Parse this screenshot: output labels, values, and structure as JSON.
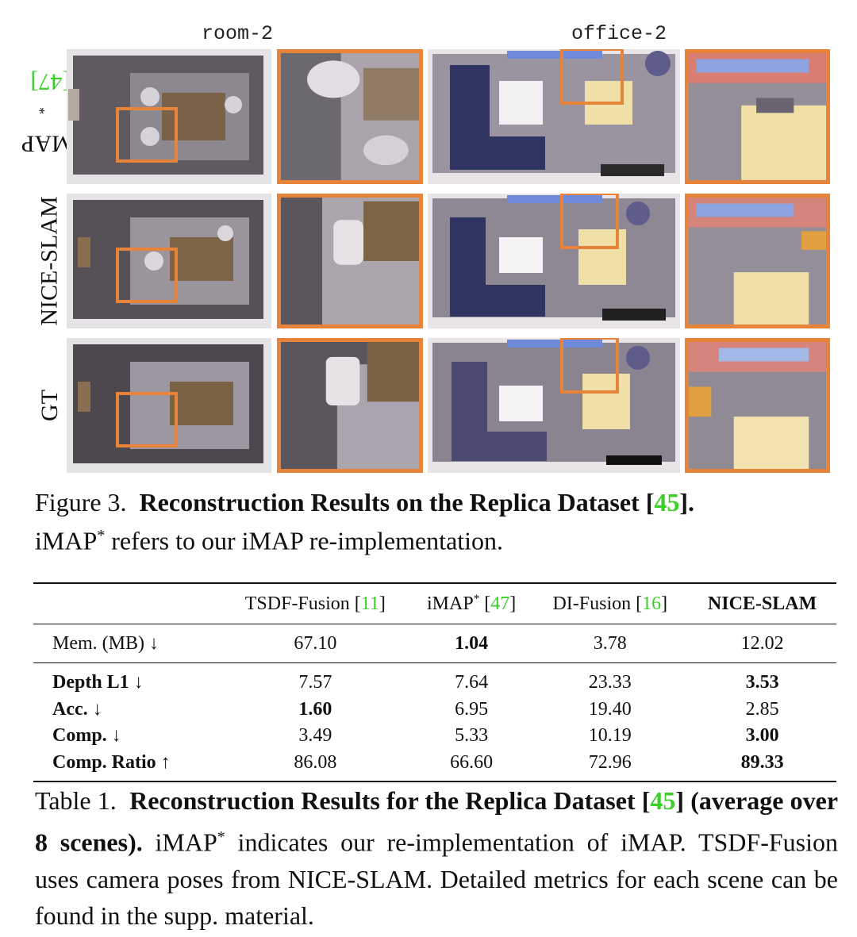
{
  "figure": {
    "columns": [
      "room-2",
      "office-2"
    ],
    "rows": [
      {
        "label": "iMAP",
        "sup": "*",
        "ref": "[47]"
      },
      {
        "label": "NICE-SLAM",
        "sup": "",
        "ref": ""
      },
      {
        "label": "GT",
        "sup": "",
        "ref": ""
      }
    ],
    "highlight_color": "#e8833a",
    "caption_prefix": "Figure 3.",
    "caption_bold_pre": "Reconstruction Results on the Replica Dataset [",
    "caption_ref": "45",
    "caption_bold_post": "].",
    "caption_line2_a": "iMAP",
    "caption_line2_sup": "*",
    "caption_line2_b": " refers to our iMAP re-implementation."
  },
  "table": {
    "header": {
      "c1": "TSDF-Fusion [",
      "c1_ref": "11",
      "c1_end": "]",
      "c2": "iMAP",
      "c2_sup": "*",
      "c2_pre": " [",
      "c2_ref": "47",
      "c2_end": "]",
      "c3": "DI-Fusion [",
      "c3_ref": "16",
      "c3_end": "]",
      "c4": "NICE-SLAM"
    },
    "rows": [
      {
        "label": "Mem. (MB) ↓",
        "values": [
          "67.10",
          "1.04",
          "3.78",
          "12.02"
        ]
      },
      {
        "label": "Depth L1 ↓",
        "values": [
          "7.57",
          "7.64",
          "23.33",
          "3.53"
        ]
      },
      {
        "label": "Acc. ↓",
        "values": [
          "1.60",
          "6.95",
          "19.40",
          "2.85"
        ]
      },
      {
        "label": "Comp. ↓",
        "values": [
          "3.49",
          "5.33",
          "10.19",
          "3.00"
        ]
      },
      {
        "label": "Comp. Ratio ↑",
        "values": [
          "86.08",
          "66.60",
          "72.96",
          "89.33"
        ]
      }
    ],
    "caption_prefix": "Table 1.",
    "caption_bold_pre": "Reconstruction Results for the Replica Dataset [",
    "caption_ref": "45",
    "caption_bold_post": "]",
    "caption_bold_line2": "(average over 8 scenes).",
    "caption_rest_a": " iMAP",
    "caption_rest_sup": "*",
    "caption_rest_b": " indicates our re-implementation of iMAP. TSDF-Fusion uses camera poses from NICE-SLAM. Detailed metrics for each scene can be found in the supp. material."
  }
}
